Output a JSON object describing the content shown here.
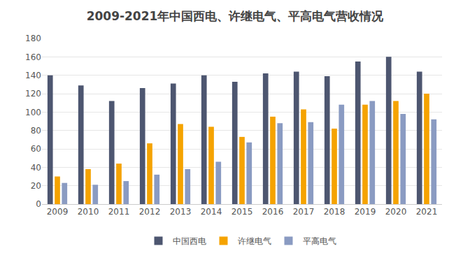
{
  "chart_data": {
    "type": "bar",
    "title": "2009-2021年中国西电、许继电气、平高电气营收情况",
    "categories": [
      "2009",
      "2010",
      "2011",
      "2012",
      "2013",
      "2014",
      "2015",
      "2016",
      "2017",
      "2018",
      "2019",
      "2020",
      "2021"
    ],
    "series": [
      {
        "name": "中国西电",
        "color": "#4d5670",
        "values": [
          140,
          129,
          112,
          126,
          131,
          140,
          133,
          142,
          144,
          139,
          155,
          160,
          144
        ]
      },
      {
        "name": "许继电气",
        "color": "#f5a300",
        "values": [
          30,
          38,
          44,
          66,
          87,
          84,
          73,
          95,
          103,
          82,
          108,
          112,
          120
        ]
      },
      {
        "name": "平高电气",
        "color": "#8a9bc2",
        "values": [
          23,
          21,
          25,
          32,
          38,
          46,
          67,
          88,
          89,
          108,
          112,
          98,
          92
        ]
      }
    ],
    "ylim": [
      0,
      180
    ],
    "yticks": [
      0,
      20,
      40,
      60,
      80,
      100,
      120,
      140,
      160,
      180
    ],
    "grid": true,
    "legend": "bottom"
  }
}
